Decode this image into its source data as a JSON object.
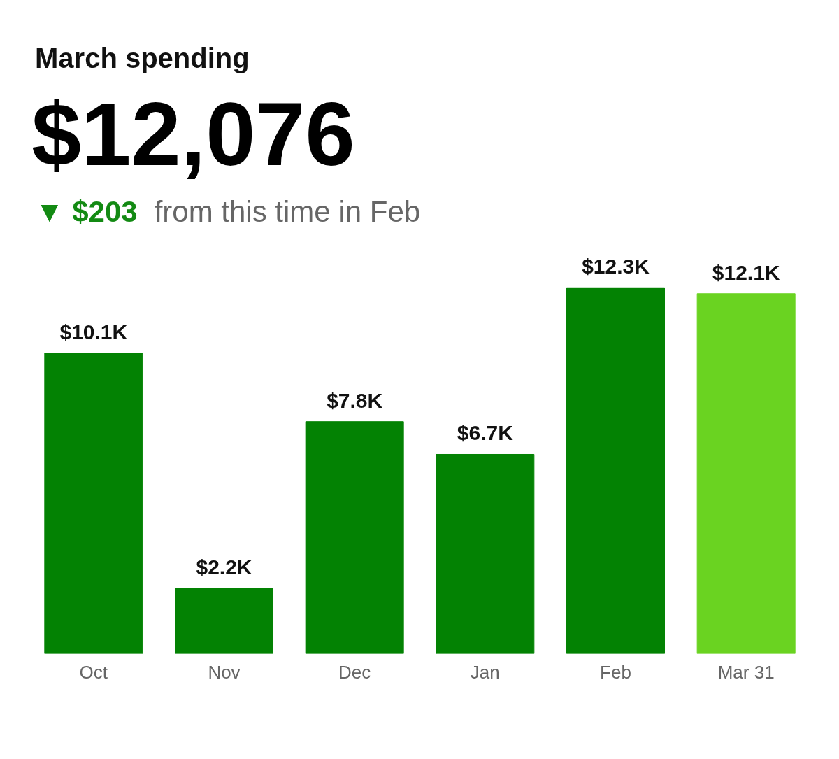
{
  "chart_data": {
    "type": "bar",
    "title": "March spending",
    "subtitle": "$12,076",
    "annotations": [
      "▼ $203",
      "from this time in Feb"
    ],
    "categories": [
      "Oct",
      "Nov",
      "Dec",
      "Jan",
      "Feb",
      "Mar 31"
    ],
    "values": [
      10.1,
      2.2,
      7.8,
      6.7,
      12.3,
      12.1
    ],
    "value_labels": [
      "$10.1K",
      "$2.2K",
      "$7.8K",
      "$6.7K",
      "$12.3K",
      "$12.1K"
    ],
    "colors": [
      "#038203",
      "#038203",
      "#038203",
      "#038203",
      "#038203",
      "#6ad321"
    ],
    "grid": false
  }
}
